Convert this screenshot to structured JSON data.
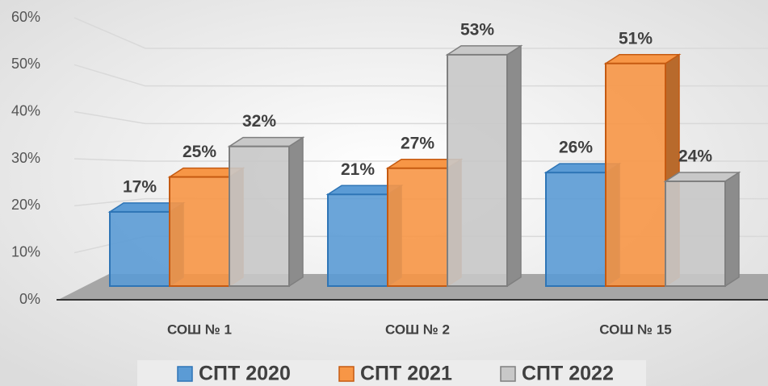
{
  "chart_data": {
    "type": "bar3d",
    "categories": [
      "СОШ № 1",
      "СОШ № 2",
      "СОШ № 15"
    ],
    "series": [
      {
        "name": "СПТ 2020",
        "color": "#5b9bd5",
        "values": [
          17,
          21,
          26
        ],
        "value_labels": [
          "17%",
          "21%",
          "26%"
        ]
      },
      {
        "name": "СПТ 2021",
        "color": "#f79646",
        "values": [
          25,
          27,
          51
        ],
        "value_labels": [
          "25%",
          "27%",
          "51%"
        ]
      },
      {
        "name": "СПТ 2022",
        "color": "#c8c8c8",
        "values": [
          32,
          53,
          24
        ],
        "value_labels": [
          "32%",
          "53%",
          "24%"
        ]
      }
    ],
    "ylim": [
      0,
      60
    ],
    "yticks": [
      {
        "value": 0,
        "label": "0%"
      },
      {
        "value": 10,
        "label": "10%"
      },
      {
        "value": 20,
        "label": "20%"
      },
      {
        "value": 30,
        "label": "30%"
      },
      {
        "value": 40,
        "label": "40%"
      },
      {
        "value": 50,
        "label": "50%"
      },
      {
        "value": 60,
        "label": "60%"
      }
    ],
    "grid": true,
    "legend": "bottom"
  }
}
